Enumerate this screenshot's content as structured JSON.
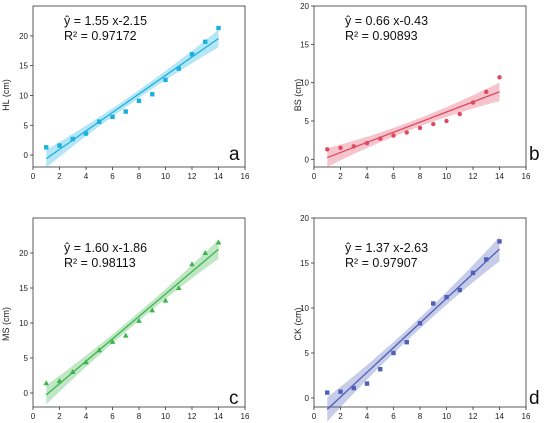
{
  "chart_data": [
    {
      "type": "scatter",
      "panel_letter": "a",
      "ylabel": "HL (cm)",
      "equation": "ŷ = 1.55 x-2.15",
      "r2": "R² = 0.97172",
      "color": "#1ab0e0",
      "marker": "square",
      "xlim": [
        0,
        16
      ],
      "ylim": [
        -2,
        25
      ],
      "xticks": [
        0,
        2,
        4,
        6,
        8,
        10,
        12,
        14,
        16
      ],
      "yticks": [
        0,
        5,
        10,
        15,
        20
      ],
      "x": [
        1,
        2,
        3,
        4,
        5,
        6,
        7,
        8,
        9,
        10,
        11,
        12,
        13,
        14
      ],
      "y": [
        1.3,
        1.6,
        2.7,
        3.6,
        5.6,
        6.4,
        7.3,
        9.1,
        10.2,
        12.6,
        14.5,
        16.9,
        19.0,
        21.3
      ],
      "fit": {
        "slope": 1.55,
        "intercept": -2.15,
        "x_range": [
          1,
          14
        ],
        "band": 1.1
      }
    },
    {
      "type": "scatter",
      "panel_letter": "b",
      "ylabel": "BS (cm)",
      "equation": "ŷ = 0.66 x-0.43",
      "r2": "R² = 0.90893",
      "color": "#e0485f",
      "marker": "circle",
      "xlim": [
        0,
        16
      ],
      "ylim": [
        -1,
        20
      ],
      "xticks": [
        0,
        2,
        4,
        6,
        8,
        10,
        12,
        14,
        16
      ],
      "yticks": [
        0,
        5,
        10,
        15,
        20
      ],
      "x": [
        1,
        2,
        3,
        4,
        5,
        6,
        7,
        8,
        9,
        10,
        11,
        12,
        13,
        14
      ],
      "y": [
        1.3,
        1.5,
        1.7,
        2.1,
        2.7,
        3.1,
        3.5,
        4.1,
        4.6,
        5.0,
        5.9,
        7.4,
        8.8,
        10.7
      ],
      "fit": {
        "slope": 0.66,
        "intercept": -0.43,
        "x_range": [
          1,
          14
        ],
        "band": 0.9
      }
    },
    {
      "type": "scatter",
      "panel_letter": "c",
      "ylabel": "MS (cm)",
      "equation": "ŷ = 1.60 x-1.86",
      "r2": "R² = 0.98113",
      "color": "#3cb44b",
      "marker": "triangle",
      "xlim": [
        0,
        16
      ],
      "ylim": [
        -2,
        25
      ],
      "xticks": [
        0,
        2,
        4,
        6,
        8,
        10,
        12,
        14,
        16
      ],
      "yticks": [
        0,
        5,
        10,
        15,
        20
      ],
      "x": [
        1,
        2,
        3,
        4,
        5,
        6,
        7,
        8,
        9,
        10,
        11,
        12,
        13,
        14
      ],
      "y": [
        1.4,
        1.7,
        3.0,
        4.4,
        6.1,
        7.3,
        8.2,
        10.3,
        11.8,
        13.2,
        15.0,
        18.4,
        20.0,
        21.5
      ],
      "fit": {
        "slope": 1.6,
        "intercept": -1.86,
        "x_range": [
          1,
          14
        ],
        "band": 1.0
      }
    },
    {
      "type": "scatter",
      "panel_letter": "d",
      "ylabel": "CK (cm)",
      "equation": "ŷ = 1.37 x-2.63",
      "r2": "R² = 0.97907",
      "color": "#5060b8",
      "marker": "square",
      "xlim": [
        0,
        16
      ],
      "ylim": [
        -1,
        20
      ],
      "xticks": [
        0,
        2,
        4,
        6,
        8,
        10,
        12,
        14,
        16
      ],
      "yticks": [
        0,
        5,
        10,
        15,
        20
      ],
      "x": [
        1,
        2,
        3,
        4,
        5,
        6,
        7,
        8,
        9,
        10,
        11,
        12,
        13,
        14
      ],
      "y": [
        0.6,
        0.7,
        1.1,
        1.6,
        3.2,
        5.0,
        6.2,
        8.3,
        10.5,
        11.2,
        12.0,
        13.9,
        15.4,
        17.4
      ],
      "fit": {
        "slope": 1.37,
        "intercept": -2.63,
        "x_range": [
          1,
          14
        ],
        "band": 1.0
      }
    }
  ]
}
